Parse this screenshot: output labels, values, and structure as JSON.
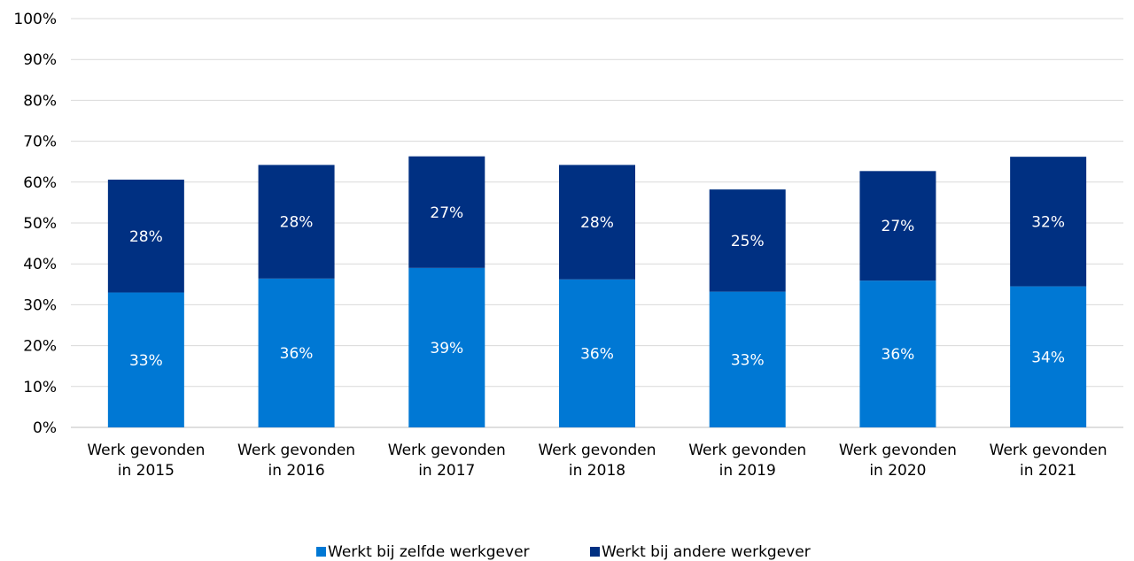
{
  "chart_data": {
    "type": "bar",
    "stacked": true,
    "categories": [
      [
        "Werk gevonden",
        "in 2015"
      ],
      [
        "Werk gevonden",
        "in 2016"
      ],
      [
        "Werk gevonden",
        "in 2017"
      ],
      [
        "Werk gevonden",
        "in 2018"
      ],
      [
        "Werk gevonden",
        "in 2019"
      ],
      [
        "Werk gevonden",
        "in 2020"
      ],
      [
        "Werk gevonden",
        "in 2021"
      ]
    ],
    "series": [
      {
        "name": "Werkt bij zelfde werkgever",
        "color": "#0078D4",
        "values": [
          33,
          36.4,
          39,
          36.2,
          33.2,
          35.9,
          34.5
        ],
        "labels": [
          "33%",
          "36%",
          "39%",
          "36%",
          "33%",
          "36%",
          "34%"
        ]
      },
      {
        "name": "Werkt bij andere werkgever",
        "color": "#003082",
        "values": [
          27.6,
          27.8,
          27.3,
          28,
          25,
          26.8,
          31.7
        ],
        "labels": [
          "28%",
          "28%",
          "27%",
          "28%",
          "25%",
          "27%",
          "32%"
        ]
      }
    ],
    "ylim": [
      0,
      100
    ],
    "yticks": [
      "0%",
      "10%",
      "20%",
      "30%",
      "40%",
      "50%",
      "60%",
      "70%",
      "80%",
      "90%",
      "100%"
    ],
    "grid": true,
    "gridColor": "#d9d9d9",
    "legend": "bottom-center",
    "title": "",
    "xlabel": "",
    "ylabel": ""
  }
}
